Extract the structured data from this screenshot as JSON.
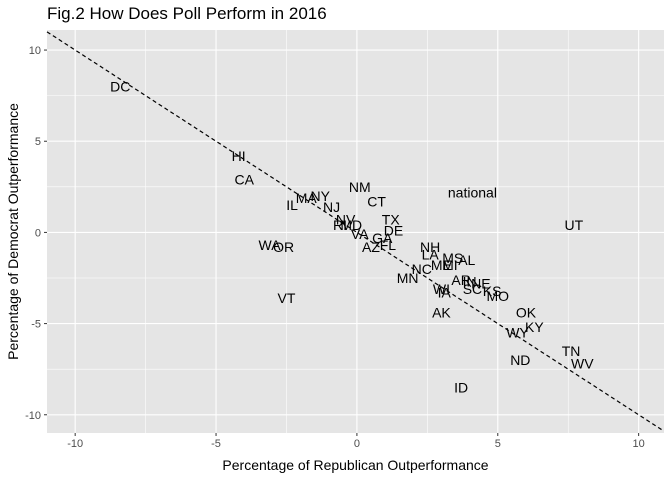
{
  "chart_data": {
    "type": "scatter",
    "title": "Fig.2 How Does Poll Perform in 2016",
    "xlabel": "Percentage of Republican Outperformance",
    "ylabel": "Percentage of Democrat Outperformance",
    "xlim": [
      -11,
      10.9
    ],
    "ylim": [
      -11,
      11.1
    ],
    "x_ticks": [
      -10,
      -5,
      0,
      5,
      10
    ],
    "y_ticks": [
      -10,
      -5,
      0,
      5,
      10
    ],
    "x_tick_labels": [
      "-10",
      "-5",
      "0",
      "5",
      "10"
    ],
    "y_tick_labels": [
      "-10",
      "-5",
      "0",
      "5",
      "10"
    ],
    "grid": true,
    "panel_background": "#e5e5e5",
    "grid_color": "#ffffff",
    "reference_line": {
      "style": "dashed",
      "slope": -1,
      "intercept": 0
    },
    "points": [
      {
        "label": "DC",
        "x": -8.4,
        "y": 8.0
      },
      {
        "label": "HI",
        "x": -4.2,
        "y": 4.2
      },
      {
        "label": "CA",
        "x": -4.0,
        "y": 2.9
      },
      {
        "label": "MA",
        "x": -1.8,
        "y": 1.9
      },
      {
        "label": "NY",
        "x": -1.3,
        "y": 2.0
      },
      {
        "label": "IL",
        "x": -2.3,
        "y": 1.5
      },
      {
        "label": "NJ",
        "x": -0.9,
        "y": 1.4
      },
      {
        "label": "NM",
        "x": 0.1,
        "y": 2.5
      },
      {
        "label": "CT",
        "x": 0.7,
        "y": 1.7
      },
      {
        "label": "national",
        "x": 4.1,
        "y": 2.2
      },
      {
        "label": "UT",
        "x": 7.7,
        "y": 0.4
      },
      {
        "label": "NV",
        "x": -0.4,
        "y": 0.7
      },
      {
        "label": "RI",
        "x": -0.6,
        "y": 0.4
      },
      {
        "label": "MD",
        "x": -0.2,
        "y": 0.4
      },
      {
        "label": "VA",
        "x": 0.1,
        "y": -0.1
      },
      {
        "label": "TX",
        "x": 1.2,
        "y": 0.7
      },
      {
        "label": "DE",
        "x": 1.3,
        "y": 0.1
      },
      {
        "label": "GA",
        "x": 0.9,
        "y": -0.3
      },
      {
        "label": "FL",
        "x": 1.1,
        "y": -0.7
      },
      {
        "label": "AZ",
        "x": 0.5,
        "y": -0.8
      },
      {
        "label": "WA",
        "x": -3.1,
        "y": -0.7
      },
      {
        "label": "OR",
        "x": -2.6,
        "y": -0.8
      },
      {
        "label": "NH",
        "x": 2.6,
        "y": -0.8
      },
      {
        "label": "LA",
        "x": 2.6,
        "y": -1.2
      },
      {
        "label": "MS",
        "x": 3.4,
        "y": -1.4
      },
      {
        "label": "AL",
        "x": 3.9,
        "y": -1.5
      },
      {
        "label": "ME",
        "x": 3.0,
        "y": -1.8
      },
      {
        "label": "MI",
        "x": 3.3,
        "y": -1.8
      },
      {
        "label": "NC",
        "x": 2.3,
        "y": -2.0
      },
      {
        "label": "MN",
        "x": 1.8,
        "y": -2.5
      },
      {
        "label": "VT",
        "x": -2.5,
        "y": -3.6
      },
      {
        "label": "AR",
        "x": 3.7,
        "y": -2.6
      },
      {
        "label": "IN",
        "x": 4.0,
        "y": -2.7
      },
      {
        "label": "NE",
        "x": 4.4,
        "y": -2.8
      },
      {
        "label": "WI",
        "x": 3.0,
        "y": -3.1
      },
      {
        "label": "SC",
        "x": 4.1,
        "y": -3.1
      },
      {
        "label": "KS",
        "x": 4.8,
        "y": -3.2
      },
      {
        "label": "MO",
        "x": 5.0,
        "y": -3.5
      },
      {
        "label": "IA",
        "x": 3.1,
        "y": -3.3
      },
      {
        "label": "AK",
        "x": 3.0,
        "y": -4.4
      },
      {
        "label": "OK",
        "x": 6.0,
        "y": -4.4
      },
      {
        "label": "KY",
        "x": 6.3,
        "y": -5.2
      },
      {
        "label": "WY",
        "x": 5.7,
        "y": -5.5
      },
      {
        "label": "TN",
        "x": 7.6,
        "y": -6.5
      },
      {
        "label": "WV",
        "x": 8.0,
        "y": -7.2
      },
      {
        "label": "ND",
        "x": 5.8,
        "y": -7.0
      },
      {
        "label": "ID",
        "x": 3.7,
        "y": -8.5
      }
    ]
  }
}
